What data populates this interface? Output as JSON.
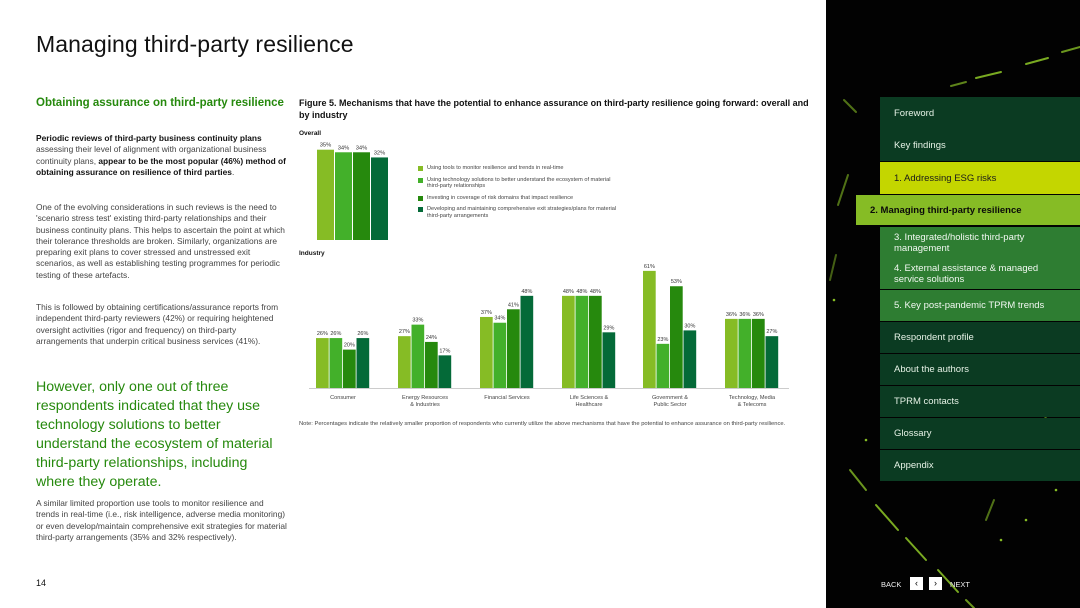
{
  "page": {
    "title": "Managing third-party resilience",
    "page_number": "14"
  },
  "left": {
    "subhead": "Obtaining assurance on third-party resilience",
    "para1_bold1": "Periodic reviews of third-party business continuity plans",
    "para1_text1": " assessing their level of alignment with organizational business continuity plans, ",
    "para1_bold2": "appear to be the most popular (46%) method of obtaining assurance on resilience of third parties",
    "para1_text2": ".",
    "para2": "One of the evolving considerations in such reviews is the need to 'scenario stress test' existing third-party relationships and their business continuity plans. This helps to ascertain the point at which their tolerance thresholds are broken. Similarly, organizations are preparing exit plans to cover stressed and unstressed exit scenarios, as well as establishing testing programmes for periodic testing of these artefacts.",
    "para3": "This is followed by obtaining certifications/assurance reports from independent third-party reviewers (42%) or requiring heightened oversight activities (rigor and frequency) on third-party arrangements that underpin critical business services (41%).",
    "quote": "However, only one out of three respondents indicated that they use technology solutions to better understand the ecosystem of material third-party relationships, including where they operate.",
    "para4": "A similar limited proportion use tools to monitor resilience and trends in real-time (i.e., risk intelligence, adverse media monitoring) or even develop/maintain comprehensive exit strategies for material third-party arrangements (35% and 32% respectively)."
  },
  "figure": {
    "title": "Figure 5. Mechanisms that have the potential to enhance assurance on third-party resilience going forward: overall and by industry",
    "overall_label": "Overall",
    "industry_label": "Industry",
    "note": "Note: Percentages indicate the relatively smaller proportion of respondents who currently utilize the above mechanisms that have the potential to enhance assurance on third-party resilience."
  },
  "chart_data": [
    {
      "type": "bar",
      "title": "Overall",
      "categories": [
        "Overall"
      ],
      "series": [
        {
          "name": "Using tools to monitor resilience and trends in real-time",
          "values": [
            35
          ],
          "color": "#86bc25"
        },
        {
          "name": "Using technology solutions to better understand the ecosystem of material third-party relationships",
          "values": [
            34
          ],
          "color": "#43b02a"
        },
        {
          "name": "Investing in coverage of risk domains that impact resilience",
          "values": [
            34
          ],
          "color": "#26890d"
        },
        {
          "name": "Developing and maintaining comprehensive exit strategies/plans for material third-party arrangements",
          "values": [
            32
          ],
          "color": "#046a38"
        }
      ],
      "value_suffix": "%",
      "ylim": [
        0,
        40
      ]
    },
    {
      "type": "bar",
      "title": "Industry",
      "categories": [
        "Consumer",
        "Energy Resources & Industries",
        "Financial Services",
        "Life Sciences & Healthcare",
        "Government & Public Sector",
        "Technology, Media & Telecoms"
      ],
      "category_lines": [
        [
          "Consumer"
        ],
        [
          "Energy Resources",
          "& Industries"
        ],
        [
          "Financial Services"
        ],
        [
          "Life Sciences &",
          "Healthcare"
        ],
        [
          "Government &",
          "Public Sector"
        ],
        [
          "Technology, Media",
          "& Telecoms"
        ]
      ],
      "series": [
        {
          "name": "Using tools to monitor resilience and trends in real-time",
          "values": [
            26,
            27,
            37,
            48,
            61,
            36
          ],
          "color": "#86bc25"
        },
        {
          "name": "Using technology solutions to better understand the ecosystem of material third-party relationships",
          "values": [
            26,
            33,
            34,
            48,
            23,
            36
          ],
          "color": "#43b02a"
        },
        {
          "name": "Investing in coverage of risk domains that impact resilience",
          "values": [
            20,
            24,
            41,
            48,
            53,
            36
          ],
          "color": "#26890d"
        },
        {
          "name": "Developing and maintaining comprehensive exit strategies/plans for material third-party arrangements",
          "values": [
            26,
            17,
            48,
            29,
            30,
            27
          ],
          "color": "#046a38"
        }
      ],
      "value_suffix": "%",
      "ylim": [
        0,
        65
      ]
    }
  ],
  "legend": [
    "Using tools to monitor resilience and trends in real-time",
    "Using technology solutions to better understand the ecosystem of material third-party relationships",
    "Investing in coverage of risk domains that impact resilience",
    "Developing and maintaining comprehensive exit strategies/plans for material third-party arrangements"
  ],
  "colors": {
    "accent_green": "#26890d",
    "bright_green": "#86bc25",
    "esg_yellow_green": "#c4d600",
    "dark_green": "#046a38",
    "nav_bg": "#0b3b22"
  },
  "nav": {
    "items": [
      {
        "label": "Foreword",
        "style": "normal"
      },
      {
        "label": "Key findings",
        "style": "normal"
      },
      {
        "label": "1.  Addressing ESG risks",
        "style": "esg"
      },
      {
        "label": "2.  Managing third-party resilience",
        "style": "active"
      },
      {
        "label": "3.  Integrated/holistic third-party management",
        "style": "sub"
      },
      {
        "label": "4.  External assistance & managed service solutions",
        "style": "sub"
      },
      {
        "label": "5.  Key post-pandemic TPRM trends",
        "style": "sub"
      },
      {
        "label": "Respondent profile",
        "style": "normal"
      },
      {
        "label": "About the authors",
        "style": "normal"
      },
      {
        "label": "TPRM contacts",
        "style": "normal"
      },
      {
        "label": "Glossary",
        "style": "normal"
      },
      {
        "label": "Appendix",
        "style": "normal"
      }
    ],
    "back_label": "BACK",
    "next_label": "NEXT",
    "back_icon": "‹",
    "next_icon": "›"
  }
}
